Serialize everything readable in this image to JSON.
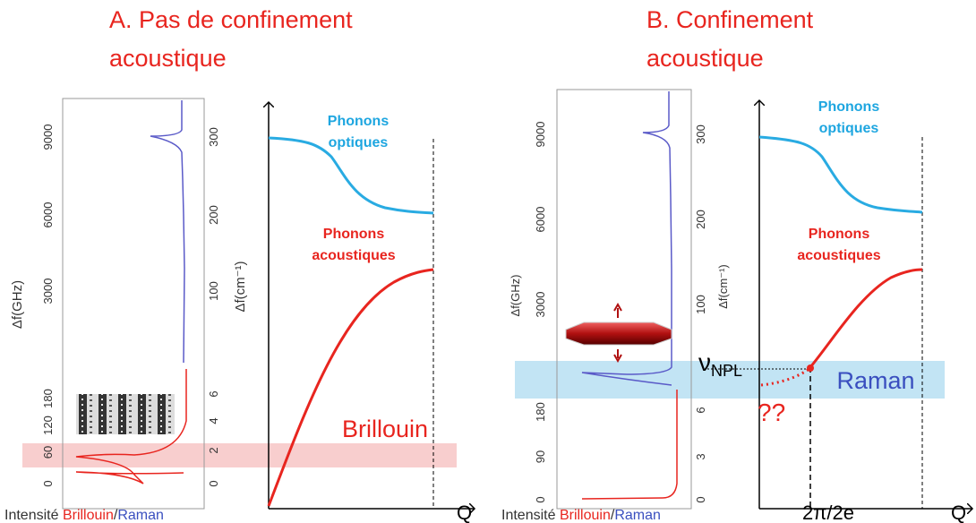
{
  "panel_a": {
    "title": [
      "A. Pas de confinement",
      "acoustique"
    ],
    "left_axis": {
      "label": "Δf(GHz)",
      "ticks": [
        "9000",
        "6000",
        "3000",
        "180",
        "120",
        "60",
        "0"
      ]
    },
    "right_axis": {
      "label": "Δf(cm⁻¹)",
      "ticks": [
        "300",
        "200",
        "100",
        "6",
        "4",
        "2",
        "0"
      ]
    },
    "footer": [
      "Intensité ",
      "Brillouin",
      "/",
      "Raman"
    ],
    "optical": [
      "Phonons",
      "optiques"
    ],
    "acoustic": [
      "Phonons",
      "acoustiques"
    ],
    "band_label": "Brillouin",
    "x_label": "Q"
  },
  "panel_b": {
    "title": [
      "B. Confinement",
      "acoustique"
    ],
    "left_axis": {
      "label": "Δf(GHz)",
      "ticks": [
        "9000",
        "6000",
        "3000",
        "180",
        "90",
        "0"
      ]
    },
    "right_axis": {
      "label": "Δf(cm⁻¹)",
      "ticks": [
        "300",
        "200",
        "100",
        "6",
        "3",
        "0"
      ]
    },
    "footer": [
      "Intensité ",
      "Brillouin",
      "/",
      "Raman"
    ],
    "optical": [
      "Phonons",
      "optiques"
    ],
    "acoustic": [
      "Phonons",
      "acoustiques"
    ],
    "nu": "ν",
    "nu_sub": "NPL",
    "band_label": "Raman",
    "question": "??",
    "x_tick": "2π/2e",
    "x_label": "Q"
  }
}
